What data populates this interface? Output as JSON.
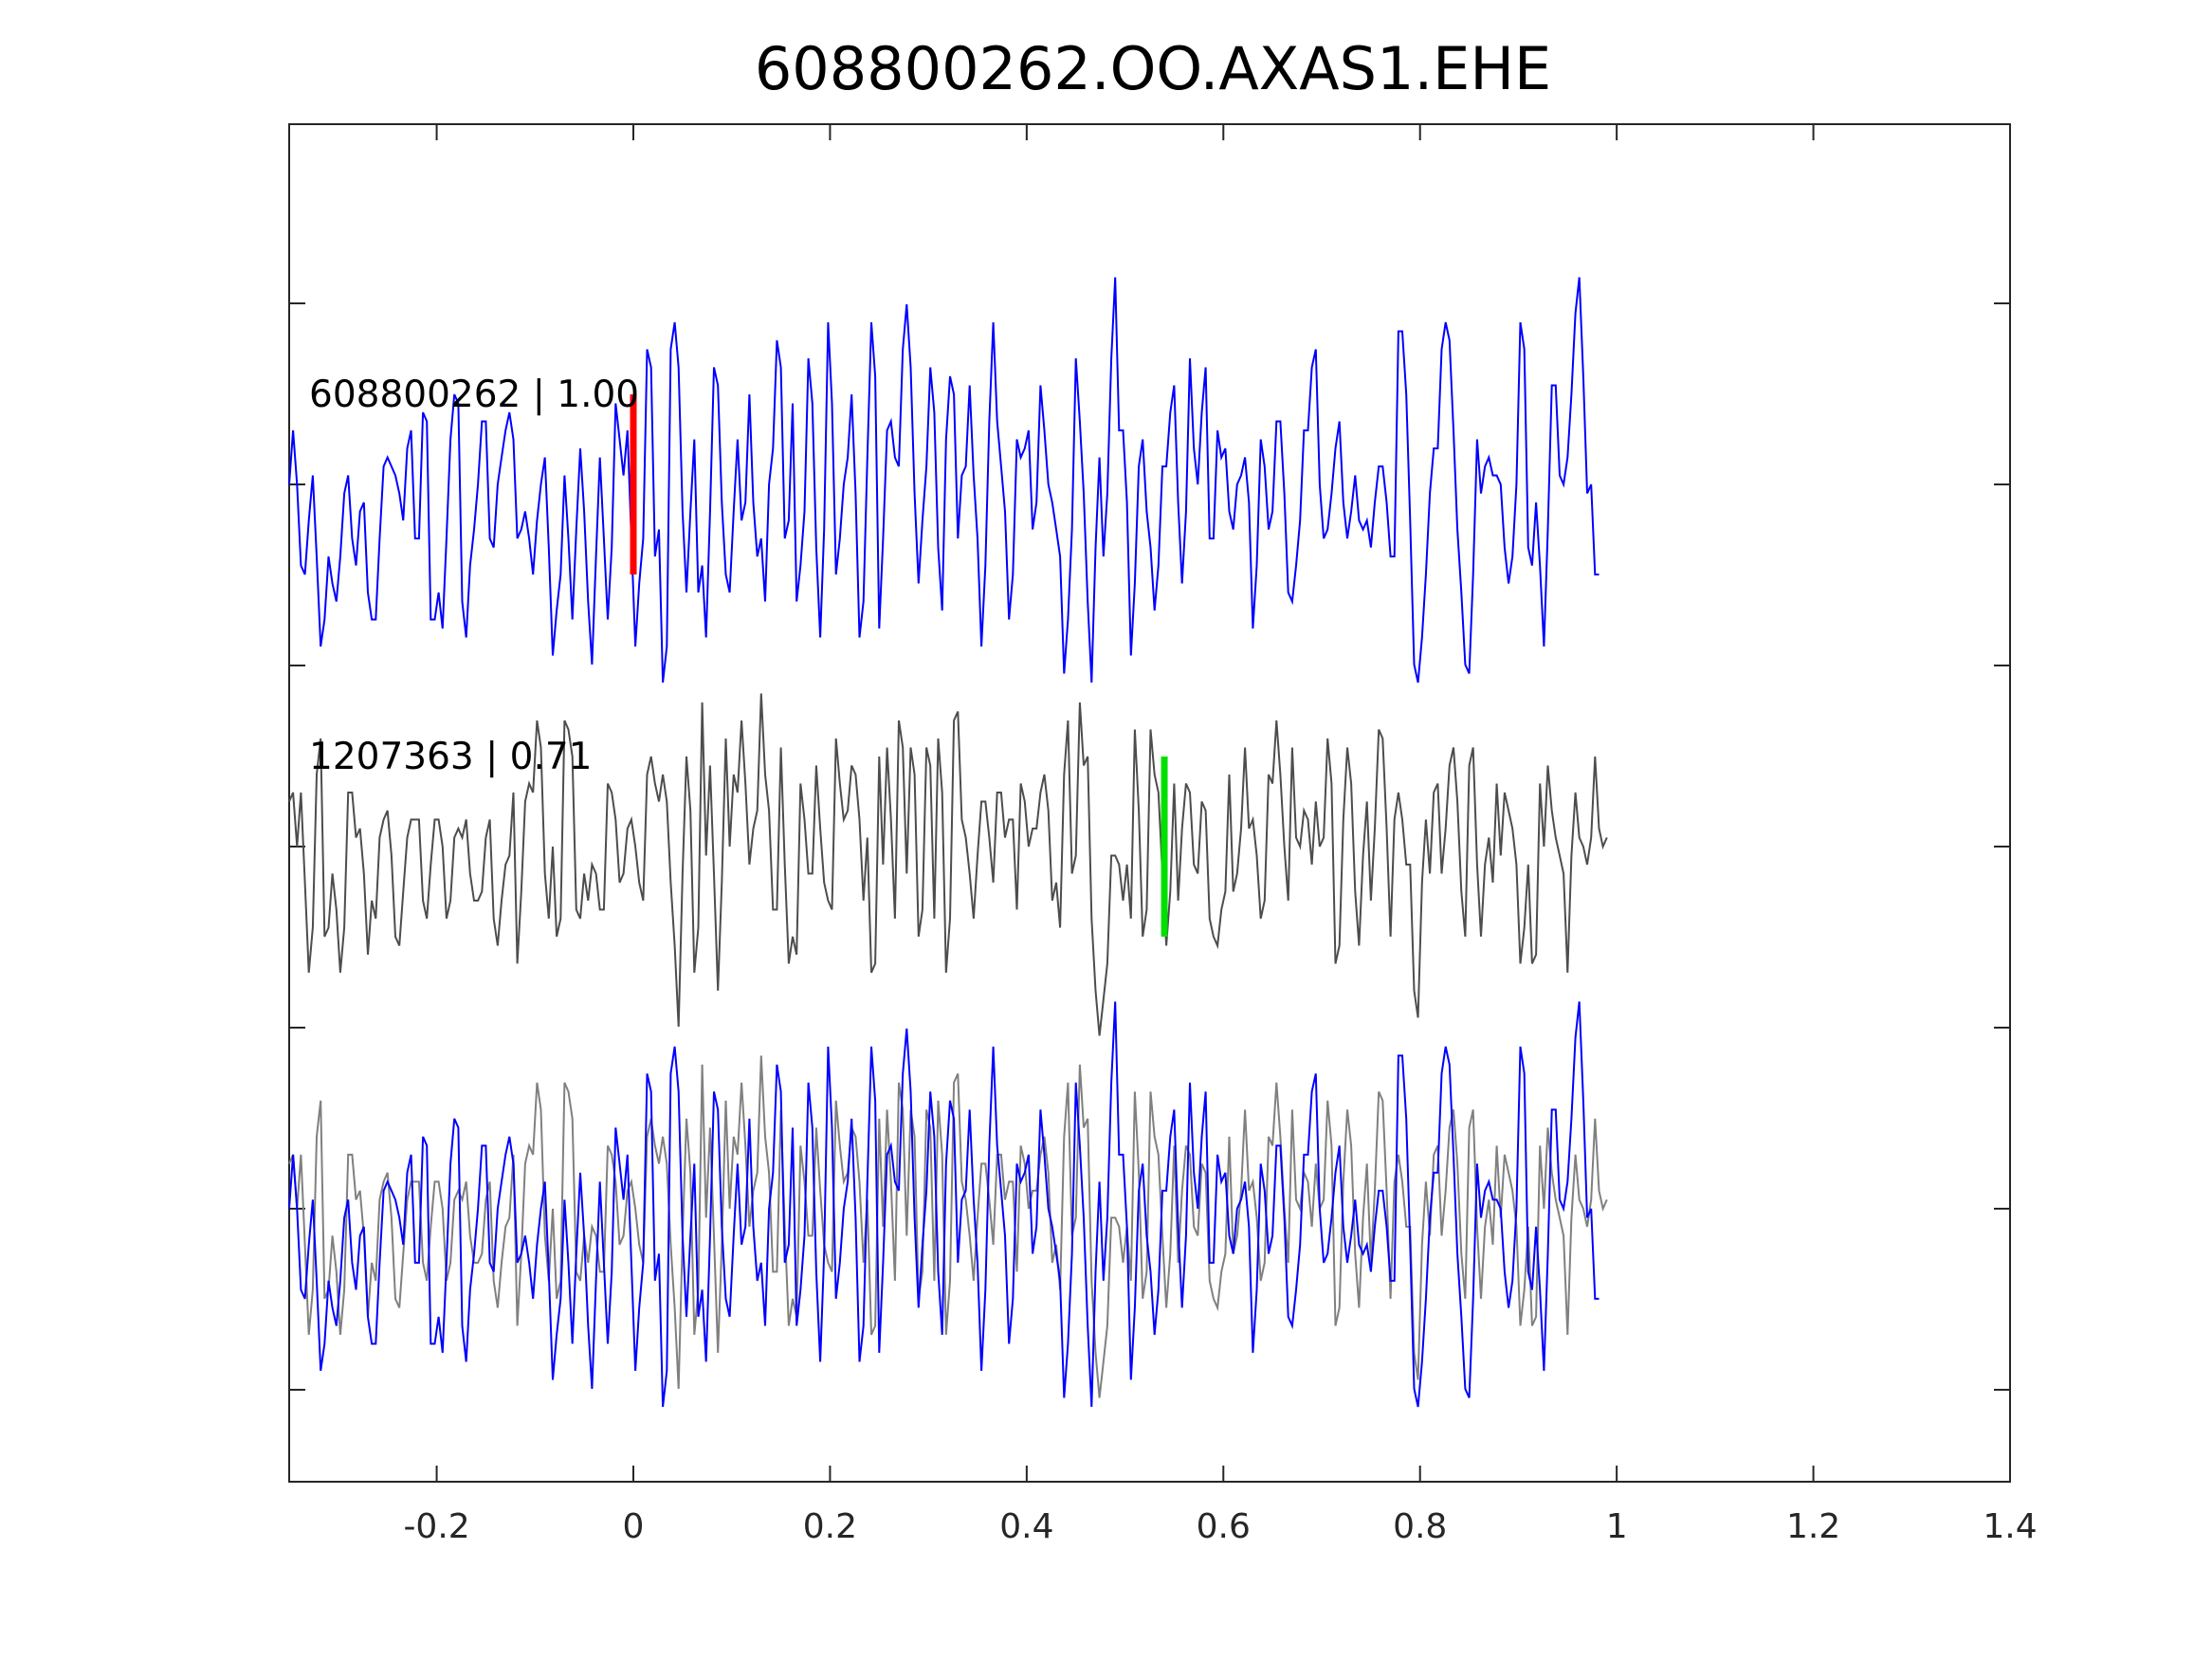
{
  "chart_data": {
    "type": "line",
    "title": "608800262.OO.AXAS1.EHE",
    "xlabel": "",
    "ylabel": "",
    "xlim": [
      -0.35,
      1.4
    ],
    "xticks": [
      -0.2,
      0,
      0.2,
      0.4,
      0.6,
      0.8,
      1,
      1.2,
      1.4
    ],
    "xtick_labels": [
      "-0.2",
      "0",
      "0.2",
      "0.4",
      "0.6",
      "0.8",
      "1",
      "1.2",
      "1.4"
    ],
    "y_tick_labels_shown": false,
    "grid": false,
    "panels": [
      {
        "label": "608800262 | 1.00",
        "color": "#0000ff",
        "marker": {
          "x": 0.0,
          "color": "#ff0000"
        },
        "t_start": -0.35,
        "dt": 0.004,
        "values": [
          0.0,
          0.6,
          0.0,
          -0.9,
          -1.0,
          -0.4,
          0.1,
          -0.8,
          -1.8,
          -1.5,
          -0.8,
          -1.1,
          -1.3,
          -0.8,
          -0.1,
          0.1,
          -0.6,
          -0.9,
          -0.3,
          -0.2,
          -1.2,
          -1.5,
          -1.5,
          -0.6,
          0.2,
          0.3,
          0.2,
          0.1,
          -0.1,
          -0.4,
          0.4,
          0.6,
          -0.6,
          -0.6,
          0.8,
          0.7,
          -1.5,
          -1.5,
          -1.2,
          -1.6,
          -0.6,
          0.5,
          1.0,
          0.9,
          -1.3,
          -1.7,
          -0.9,
          -0.5,
          0.0,
          0.7,
          0.7,
          -0.6,
          -0.7,
          0.0,
          0.3,
          0.6,
          0.8,
          0.5,
          -0.6,
          -0.5,
          -0.3,
          -0.6,
          -1.0,
          -0.4,
          0.0,
          0.3,
          -0.7,
          -1.9,
          -1.4,
          -1.0,
          0.1,
          -0.6,
          -1.5,
          -0.5,
          0.4,
          -0.3,
          -1.3,
          -2.0,
          -0.8,
          0.3,
          -0.6,
          -1.5,
          -0.7,
          0.9,
          0.5,
          0.1,
          0.6,
          -0.6,
          -1.8,
          -1.1,
          -0.6,
          1.5,
          1.3,
          -0.8,
          -0.5,
          -2.2,
          -1.8,
          1.5,
          1.8,
          1.3,
          -0.3,
          -1.2,
          -0.3,
          0.5,
          -1.2,
          -0.9,
          -1.7,
          -0.3,
          1.3,
          1.1,
          -0.2,
          -1.0,
          -1.2,
          -0.3,
          0.5,
          -0.4,
          -0.2,
          1.0,
          -0.2,
          -0.8,
          -0.6,
          -1.3,
          0.0,
          0.4,
          1.6,
          1.3,
          -0.6,
          -0.4,
          0.9,
          -1.3,
          -0.9,
          -0.3,
          1.4,
          0.9,
          -0.7,
          -1.7,
          -0.5,
          1.8,
          0.9,
          -1.0,
          -0.6,
          0.0,
          0.3,
          1.0,
          -0.1,
          -1.7,
          -1.3,
          0.3,
          1.8,
          1.2,
          -1.6,
          -0.6,
          0.6,
          0.7,
          0.3,
          0.2,
          1.5,
          2.0,
          1.3,
          -0.1,
          -1.1,
          -0.4,
          0.2,
          1.3,
          0.8,
          -0.7,
          -1.4,
          0.5,
          1.2,
          1.0,
          -0.6,
          0.1,
          0.2,
          1.1,
          0.1,
          -0.6,
          -1.8,
          -0.9,
          0.7,
          1.8,
          0.7,
          0.2,
          -0.3,
          -1.5,
          -1.0,
          0.5,
          0.3,
          0.4,
          0.6,
          -0.5,
          -0.2,
          1.1,
          0.6,
          0.0,
          -0.2,
          -0.5,
          -0.8,
          -2.1,
          -1.5,
          -0.5,
          1.4,
          0.7,
          -0.1,
          -1.3,
          -2.2,
          -0.7,
          0.3,
          -0.8,
          -0.1,
          1.4,
          2.3,
          0.6,
          0.6,
          -0.2,
          -1.9,
          -1.1,
          0.2,
          0.5,
          -0.3,
          -0.7,
          -1.4,
          -0.9,
          0.2,
          0.2,
          0.8,
          1.1,
          -0.2,
          -1.1,
          -0.3,
          1.4,
          0.4,
          0.0,
          0.8,
          1.3,
          -0.6,
          -0.6,
          0.6,
          0.3,
          0.4,
          -0.3,
          -0.5,
          0.0,
          0.1,
          0.3,
          -0.2,
          -1.6,
          -0.9,
          0.5,
          0.2,
          -0.5,
          -0.3,
          0.7,
          0.7,
          -0.1,
          -1.2,
          -1.3,
          -0.9,
          -0.4,
          0.6,
          0.6,
          1.3,
          1.5,
          0.0,
          -0.6,
          -0.5,
          -0.1,
          0.4,
          0.7,
          -0.2,
          -0.6,
          -0.3,
          0.1,
          -0.4,
          -0.5,
          -0.4,
          -0.7,
          -0.2,
          0.2,
          0.2,
          -0.2,
          -0.8,
          -0.8,
          1.7,
          1.7,
          1.0,
          -0.4,
          -2.0,
          -2.2,
          -1.7,
          -1.0,
          -0.1,
          0.4,
          0.4,
          1.5,
          1.8,
          1.6,
          0.6,
          -0.5,
          -1.2,
          -2.0,
          -2.1,
          -1.0,
          0.5,
          -0.1,
          0.2,
          0.3,
          0.1,
          0.1,
          0.0,
          -0.7,
          -1.1,
          -0.8,
          0.0,
          1.8,
          1.5,
          -0.7,
          -0.9,
          -0.2,
          -0.9,
          -1.8,
          -0.5,
          1.1,
          1.1,
          0.1,
          0.0,
          0.3,
          1.0,
          1.9,
          2.3,
          1.2,
          -0.1,
          0.0,
          -1.0,
          -1.0
        ]
      },
      {
        "label": "1207363 | 0.71",
        "color": "#4d4d4d",
        "marker": {
          "x": 0.54,
          "color": "#00e000"
        },
        "t_start": -0.35,
        "dt": 0.004,
        "values": [
          0.5,
          0.6,
          0.0,
          0.6,
          -0.4,
          -1.4,
          -0.9,
          0.8,
          1.2,
          -1.0,
          -0.9,
          -0.3,
          -0.7,
          -1.4,
          -0.9,
          0.6,
          0.6,
          0.1,
          0.2,
          -0.3,
          -1.2,
          -0.6,
          -0.8,
          0.1,
          0.3,
          0.4,
          -0.1,
          -1.0,
          -1.1,
          -0.5,
          0.1,
          0.3,
          0.3,
          0.3,
          -0.6,
          -0.8,
          -0.2,
          0.3,
          0.3,
          0.0,
          -0.8,
          -0.6,
          0.1,
          0.2,
          0.1,
          0.3,
          -0.3,
          -0.6,
          -0.6,
          -0.5,
          0.1,
          0.3,
          -0.8,
          -1.1,
          -0.6,
          -0.2,
          -0.1,
          0.6,
          -1.3,
          -0.5,
          0.5,
          0.7,
          0.6,
          1.4,
          1.1,
          -0.3,
          -0.8,
          0.0,
          -1.0,
          -0.8,
          1.4,
          1.3,
          1.0,
          -0.7,
          -0.8,
          -0.3,
          -0.6,
          -0.2,
          -0.3,
          -0.7,
          -0.7,
          0.7,
          0.6,
          0.3,
          -0.4,
          -0.3,
          0.2,
          0.3,
          0.0,
          -0.4,
          -0.6,
          0.8,
          1.0,
          0.7,
          0.5,
          0.8,
          0.5,
          -0.4,
          -1.1,
          -2.0,
          -0.3,
          1.0,
          0.4,
          -1.4,
          -0.9,
          1.6,
          -0.1,
          0.9,
          -0.3,
          -1.6,
          -0.4,
          1.2,
          0.0,
          0.8,
          0.6,
          1.4,
          0.7,
          -0.2,
          0.2,
          0.4,
          1.7,
          0.8,
          0.4,
          -0.7,
          -0.7,
          1.1,
          -0.2,
          -1.3,
          -1.0,
          -1.2,
          0.7,
          0.3,
          -0.3,
          -0.3,
          0.9,
          0.2,
          -0.4,
          -0.6,
          -0.7,
          1.2,
          0.7,
          0.3,
          0.4,
          0.9,
          0.8,
          0.3,
          -0.6,
          0.1,
          -1.4,
          -1.3,
          1.0,
          -0.2,
          1.1,
          0.3,
          -0.8,
          1.4,
          1.1,
          -0.3,
          1.1,
          0.8,
          -1.0,
          -0.7,
          1.1,
          0.9,
          -0.8,
          1.2,
          0.6,
          -1.4,
          -0.8,
          1.4,
          1.5,
          0.3,
          0.1,
          -0.3,
          -0.8,
          -0.1,
          0.5,
          0.5,
          0.1,
          -0.4,
          0.6,
          0.6,
          0.1,
          0.3,
          0.3,
          -0.7,
          0.7,
          0.5,
          0.0,
          0.2,
          0.2,
          0.6,
          0.8,
          0.4,
          -0.6,
          -0.4,
          -0.9,
          0.8,
          1.4,
          -0.3,
          -0.1,
          1.6,
          0.9,
          1.0,
          -0.8,
          -1.6,
          -2.1,
          -1.7,
          -1.3,
          -0.1,
          -0.1,
          -0.2,
          -0.6,
          -0.2,
          -0.8,
          1.3,
          0.4,
          -1.0,
          -0.7,
          1.3,
          0.8,
          0.6,
          -0.3,
          -1.1,
          -0.5,
          0.7,
          -0.6,
          0.2,
          0.7,
          0.6,
          -0.2,
          -0.3,
          0.5,
          0.4,
          -0.8,
          -1.0,
          -1.1,
          -0.7,
          -0.5,
          0.8,
          -0.5,
          -0.3,
          0.2,
          1.1,
          0.2,
          0.3,
          -0.1,
          -0.8,
          -0.6,
          0.8,
          0.7,
          1.4,
          0.8,
          0.0,
          -0.6,
          1.1,
          0.1,
          0.0,
          0.4,
          0.3,
          -0.2,
          0.5,
          0.0,
          0.1,
          1.2,
          0.7,
          -1.3,
          -1.1,
          0.3,
          1.1,
          0.7,
          -0.5,
          -1.1,
          -0.1,
          0.5,
          -0.6,
          0.2,
          1.3,
          1.2,
          0.2,
          -1.0,
          0.3,
          0.6,
          0.3,
          -0.2,
          -0.2,
          -1.6,
          -1.9,
          -0.4,
          0.3,
          -0.3,
          0.6,
          0.7,
          -0.3,
          0.2,
          0.9,
          1.1,
          0.5,
          -0.5,
          -1.0,
          0.9,
          1.1,
          -0.2,
          -1.0,
          -0.2,
          0.1,
          -0.4,
          0.7,
          -0.1,
          0.6,
          0.4,
          0.2,
          -0.2,
          -1.3,
          -0.9,
          -0.2,
          -1.3,
          -1.2,
          0.7,
          0.0,
          0.9,
          0.4,
          0.1,
          -0.1,
          -0.3,
          -1.4,
          -0.1,
          0.6,
          0.1,
          0.0,
          -0.2,
          0.1,
          1.0,
          0.2,
          0.0,
          0.1
        ]
      }
    ],
    "overlay": {
      "description_of_series": "bottom panel overlays both traces",
      "series": [
        {
          "source_panel": 0,
          "color": "#0000ff"
        },
        {
          "source_panel": 1,
          "color": "#808080"
        }
      ]
    }
  }
}
